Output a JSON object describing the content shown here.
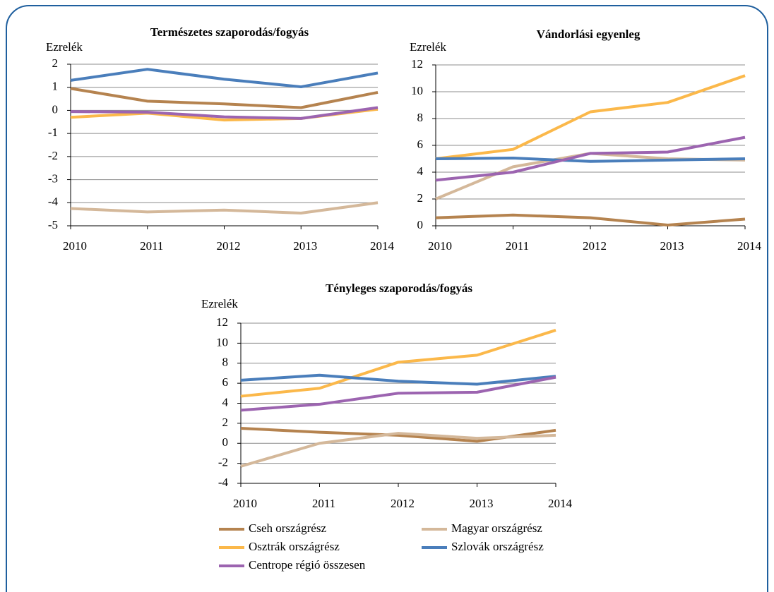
{
  "chart_data": [
    {
      "type": "line",
      "title": "Természetes szaporodás/fogyás",
      "y_label": "Ezrelék",
      "categories": [
        "2010",
        "2011",
        "2012",
        "2013",
        "2014"
      ],
      "ylim": [
        -5,
        2
      ],
      "yticks": [
        -5,
        -4,
        -3,
        -2,
        -1,
        0,
        1,
        2
      ],
      "grid": true,
      "series": [
        {
          "name": "Cseh országrész",
          "color": "#b5834f",
          "values": [
            0.95,
            0.4,
            0.28,
            0.12,
            0.78
          ]
        },
        {
          "name": "Magyar országrész",
          "color": "#d4b89a",
          "values": [
            -4.25,
            -4.4,
            -4.32,
            -4.45,
            -4.0
          ]
        },
        {
          "name": "Osztrák országrész",
          "color": "#fbb84a",
          "values": [
            -0.3,
            -0.12,
            -0.42,
            -0.35,
            0.05
          ]
        },
        {
          "name": "Szlovák országrész",
          "color": "#4a7ebb",
          "values": [
            1.3,
            1.78,
            1.35,
            1.02,
            1.62
          ]
        },
        {
          "name": "Centrope régió összesen",
          "color": "#9c64b0",
          "values": [
            -0.05,
            -0.08,
            -0.28,
            -0.35,
            0.12
          ]
        }
      ]
    },
    {
      "type": "line",
      "title": "Vándorlási egyenleg",
      "y_label": "Ezrelék",
      "categories": [
        "2010",
        "2011",
        "2012",
        "2013",
        "2014"
      ],
      "ylim": [
        0,
        12
      ],
      "yticks": [
        0,
        2,
        4,
        6,
        8,
        10,
        12
      ],
      "grid": true,
      "series": [
        {
          "name": "Cseh országrész",
          "color": "#b5834f",
          "values": [
            0.6,
            0.8,
            0.6,
            0.05,
            0.5
          ]
        },
        {
          "name": "Magyar országrész",
          "color": "#d4b89a",
          "values": [
            2.0,
            4.4,
            5.4,
            5.0,
            4.9
          ]
        },
        {
          "name": "Osztrák országrész",
          "color": "#fbb84a",
          "values": [
            5.0,
            5.7,
            8.5,
            9.2,
            11.2
          ]
        },
        {
          "name": "Szlovák országrész",
          "color": "#4a7ebb",
          "values": [
            5.0,
            5.05,
            4.8,
            4.9,
            5.0
          ]
        },
        {
          "name": "Centrope régió összesen",
          "color": "#9c64b0",
          "values": [
            3.4,
            4.0,
            5.4,
            5.5,
            6.6
          ]
        }
      ]
    },
    {
      "type": "line",
      "title": "Tényleges szaporodás/fogyás",
      "y_label": "Ezrelék",
      "categories": [
        "2010",
        "2011",
        "2012",
        "2013",
        "2014"
      ],
      "ylim": [
        -4,
        12
      ],
      "yticks": [
        -4,
        -2,
        0,
        2,
        4,
        6,
        8,
        10,
        12
      ],
      "grid": true,
      "series": [
        {
          "name": "Cseh országrész",
          "color": "#b5834f",
          "values": [
            1.5,
            1.1,
            0.8,
            0.2,
            1.3
          ]
        },
        {
          "name": "Magyar országrész",
          "color": "#d4b89a",
          "values": [
            -2.3,
            0,
            1.0,
            0.5,
            0.8
          ]
        },
        {
          "name": "Osztrák országrész",
          "color": "#fbb84a",
          "values": [
            4.7,
            5.5,
            8.1,
            8.8,
            11.3
          ]
        },
        {
          "name": "Szlovák országrész",
          "color": "#4a7ebb",
          "values": [
            6.3,
            6.8,
            6.2,
            5.9,
            6.7
          ]
        },
        {
          "name": "Centrope régió összesen",
          "color": "#9c64b0",
          "values": [
            3.3,
            3.9,
            5.0,
            5.1,
            6.6
          ]
        }
      ]
    }
  ]
}
